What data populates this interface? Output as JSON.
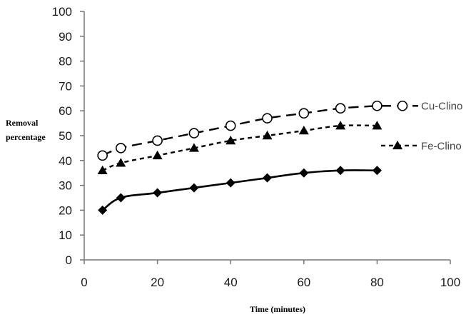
{
  "chart_data": {
    "type": "line",
    "title": "",
    "xlabel": "Time (minutes)",
    "ylabel_lines": [
      "Removal",
      "percentage"
    ],
    "xlim": [
      0,
      100
    ],
    "ylim": [
      0,
      100
    ],
    "x_ticks": [
      0,
      20,
      40,
      60,
      80,
      100
    ],
    "y_ticks": [
      0,
      10,
      20,
      30,
      40,
      50,
      60,
      70,
      80,
      90,
      100
    ],
    "grid": false,
    "legend_placement": "right, inline with series",
    "x": [
      5,
      10,
      20,
      30,
      40,
      50,
      60,
      70,
      80
    ],
    "series": [
      {
        "name": "Cu-Clino",
        "values": [
          42,
          45,
          48,
          51,
          54,
          57,
          59,
          61,
          62
        ],
        "line_style": "long-dash",
        "marker": "open-circle",
        "color": "#000000",
        "legend_y": 62
      },
      {
        "name": "Fe-Clino",
        "values": [
          36,
          39,
          42,
          45,
          48,
          50,
          52,
          54,
          54
        ],
        "line_style": "short-dash",
        "marker": "filled-triangle",
        "color": "#000000",
        "legend_y": 46
      },
      {
        "name": "",
        "values": [
          20,
          25,
          27,
          29,
          31,
          33,
          35,
          36,
          36
        ],
        "line_style": "solid",
        "marker": "filled-diamond",
        "color": "#000000"
      }
    ]
  }
}
